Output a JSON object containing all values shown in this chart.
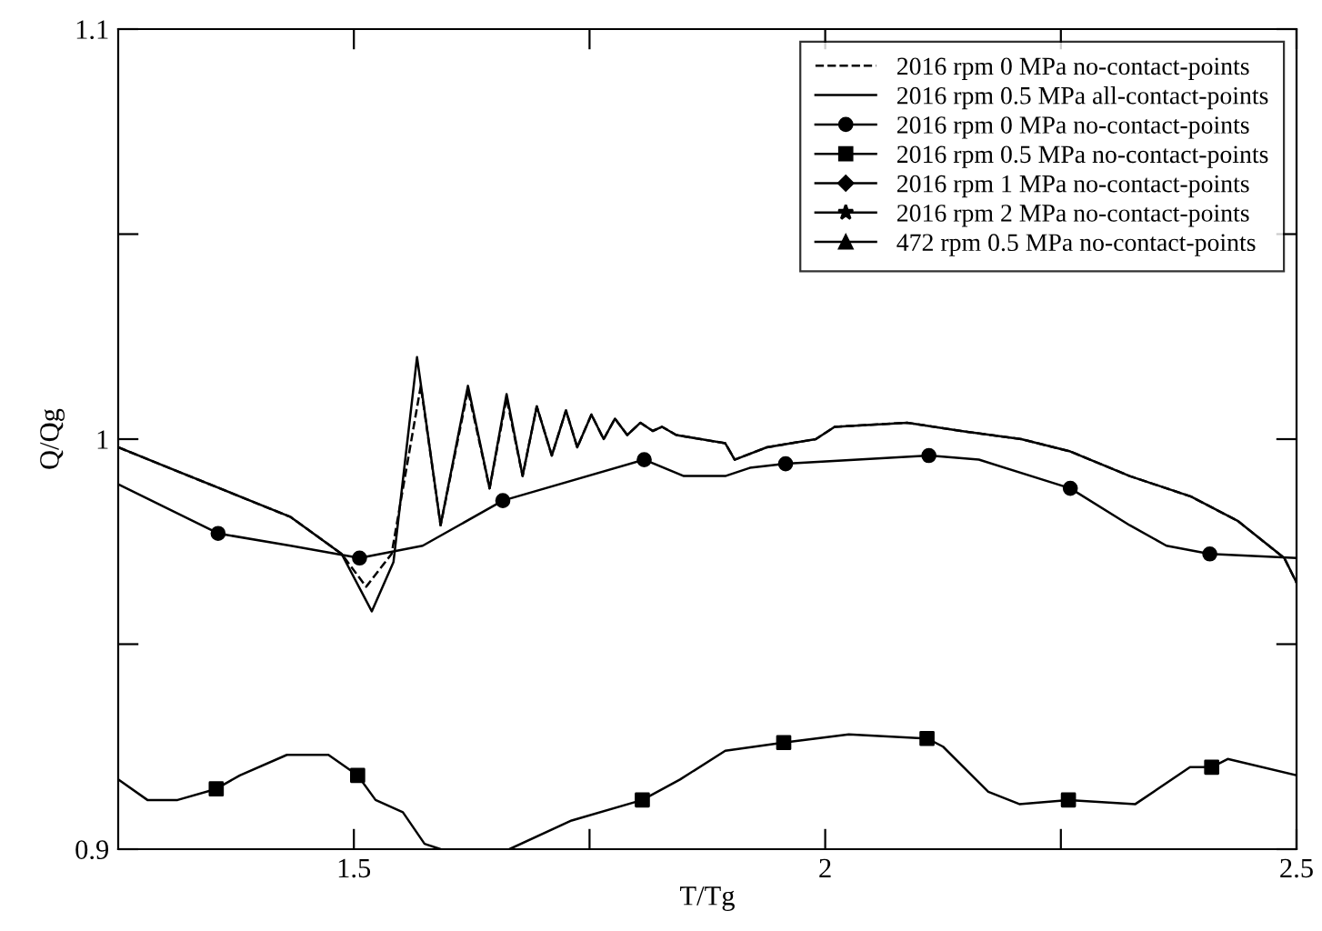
{
  "chart_data": {
    "type": "line",
    "xlabel": "T/Tg",
    "ylabel": "Q/Qg",
    "xlim": [
      1.25,
      2.5
    ],
    "ylim": [
      0.9,
      1.1
    ],
    "xticks": [
      1.5,
      {
        "value": 1.75,
        "label": null
      },
      2,
      {
        "value": 2.25,
        "label": null
      },
      2.5
    ],
    "yticks": [
      0.9,
      {
        "value": 0.95,
        "label": null
      },
      1,
      {
        "value": 1.05,
        "label": null
      },
      1.1
    ],
    "grid": false,
    "legend": "top right",
    "series": [
      {
        "name": "2016 rpm 0 MPa no-contact-points",
        "line_style": "dashed",
        "color": "#000000",
        "x": [
          1.25,
          1.433,
          1.487,
          1.513,
          1.54,
          1.571,
          1.592,
          1.621,
          1.644,
          1.662,
          1.679,
          1.694,
          1.71,
          1.725,
          1.737,
          1.752,
          1.765,
          1.777,
          1.79,
          1.804,
          1.817,
          1.827,
          1.842,
          1.894,
          1.904,
          1.938,
          1.99,
          2.01,
          2.087,
          2.144,
          2.208,
          2.26,
          2.323,
          2.388,
          2.438,
          2.487,
          2.5
        ],
        "values": [
          0.998,
          0.981,
          0.972,
          0.964,
          0.972,
          1.013,
          0.979,
          1.012,
          0.988,
          1.01,
          0.991,
          1.008,
          0.996,
          1.007,
          0.998,
          1.006,
          1.0,
          1.005,
          1.001,
          1.004,
          1.002,
          1.003,
          1.001,
          0.999,
          0.995,
          0.998,
          1.0,
          1.003,
          1.004,
          1.002,
          1.0,
          0.997,
          0.991,
          0.986,
          0.98,
          0.971,
          0.965
        ]
      },
      {
        "name": "2016 rpm 0.5 MPa all-contact-points",
        "line_style": "solid",
        "color": "#000000",
        "x": [
          1.25,
          1.433,
          1.487,
          1.519,
          1.542,
          1.567,
          1.592,
          1.621,
          1.644,
          1.662,
          1.679,
          1.694,
          1.71,
          1.725,
          1.737,
          1.752,
          1.765,
          1.777,
          1.79,
          1.804,
          1.817,
          1.827,
          1.842,
          1.894,
          1.904,
          1.938,
          1.99,
          2.01,
          2.087,
          2.144,
          2.208,
          2.26,
          2.323,
          2.388,
          2.438,
          2.487,
          2.5
        ],
        "values": [
          0.998,
          0.981,
          0.972,
          0.958,
          0.97,
          1.02,
          0.979,
          1.013,
          0.988,
          1.011,
          0.991,
          1.008,
          0.996,
          1.007,
          0.998,
          1.006,
          1.0,
          1.005,
          1.001,
          1.004,
          1.002,
          1.003,
          1.001,
          0.999,
          0.995,
          0.998,
          1.0,
          1.003,
          1.004,
          1.002,
          1.0,
          0.997,
          0.991,
          0.986,
          0.98,
          0.971,
          0.965
        ]
      },
      {
        "line_style": "solid",
        "color": "#000000",
        "x": [
          1.25,
          1.356,
          1.433,
          1.506,
          1.573,
          1.658,
          1.808,
          1.85,
          1.894,
          1.92,
          1.958,
          2.11,
          2.163,
          2.26,
          2.323,
          2.362,
          2.408,
          2.5
        ],
        "values": [
          0.989,
          0.977,
          0.974,
          0.971,
          0.974,
          0.985,
          0.995,
          0.991,
          0.991,
          0.993,
          0.994,
          0.996,
          0.995,
          0.988,
          0.979,
          0.974,
          0.972,
          0.971
        ]
      },
      {
        "name": "2016 rpm 0 MPa no-contact-points",
        "type": "scatter",
        "marker": "circle",
        "color": "#000000",
        "x": [
          1.356,
          1.506,
          1.658,
          1.808,
          1.958,
          2.11,
          2.26,
          2.408
        ],
        "values": [
          0.977,
          0.971,
          0.985,
          0.995,
          0.994,
          0.996,
          0.988,
          0.972
        ]
      },
      {
        "line_style": "solid",
        "color": "#000000",
        "x": [
          1.25,
          1.281,
          1.313,
          1.354,
          1.379,
          1.429,
          1.473,
          1.504,
          1.523,
          1.552,
          1.575,
          1.592,
          1.63,
          1.665,
          1.731,
          1.806,
          1.846,
          1.894,
          1.956,
          2.025,
          2.108,
          2.125,
          2.173,
          2.206,
          2.258,
          2.329,
          2.387,
          2.41,
          2.427,
          2.5
        ],
        "values": [
          0.917,
          0.912,
          0.912,
          0.9147,
          0.918,
          0.923,
          0.923,
          0.918,
          0.912,
          0.909,
          0.9013,
          0.9,
          null,
          0.9,
          0.907,
          0.912,
          0.917,
          0.924,
          0.926,
          0.928,
          0.927,
          0.925,
          0.914,
          0.911,
          0.912,
          0.911,
          0.92,
          0.92,
          0.922,
          0.918
        ]
      },
      {
        "name": "2016 rpm 0.5 MPa no-contact-points",
        "type": "scatter",
        "marker": "square",
        "color": "#000000",
        "x": [
          1.354,
          1.504,
          1.806,
          1.956,
          2.108,
          2.258,
          2.41
        ],
        "values": [
          0.9147,
          0.918,
          0.912,
          0.926,
          0.927,
          0.912,
          0.92
        ]
      },
      {
        "name": "2016 rpm 1 MPa no-contact-points",
        "type": "scatter",
        "marker": "diamond",
        "color": "#000000"
      },
      {
        "name": "2016 rpm 2 MPa no-contact-points",
        "type": "scatter",
        "marker": "star",
        "color": "#000000"
      },
      {
        "name": "472 rpm 0.5 MPa no-contact-points",
        "type": "scatter",
        "marker": "triangle",
        "color": "#000000"
      }
    ]
  }
}
